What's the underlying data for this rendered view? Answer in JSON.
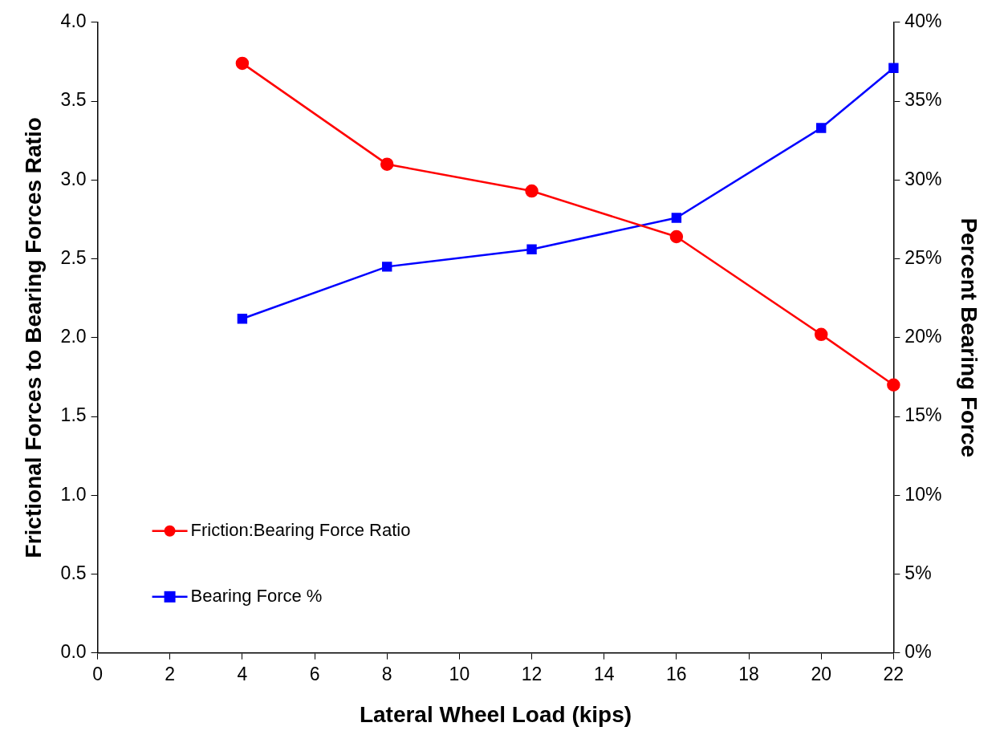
{
  "chart_data": {
    "type": "line",
    "xlabel": "Lateral Wheel Load (kips)",
    "ylabel": "Frictional Forces to Bearing Forces Ratio",
    "y2label": "Percent Bearing Force",
    "x": [
      4,
      8,
      12,
      16,
      20,
      22
    ],
    "series": [
      {
        "name": "Friction:Bearing Force Ratio",
        "color": "#ff0000",
        "marker": "circle",
        "values": [
          3.74,
          3.1,
          2.93,
          2.64,
          2.02,
          1.7
        ]
      },
      {
        "name": "Bearing Force %",
        "color": "#0000ff",
        "marker": "square",
        "axis": "y2",
        "values": [
          21.2,
          24.5,
          25.6,
          27.6,
          33.3,
          37.1
        ]
      }
    ],
    "xlim": [
      0,
      22
    ],
    "xticks": [
      0,
      2,
      4,
      6,
      8,
      10,
      12,
      14,
      16,
      18,
      20,
      22
    ],
    "ylim": [
      0,
      4
    ],
    "yticks": [
      {
        "value": 0,
        "label": "0.0"
      },
      {
        "value": 0.5,
        "label": "0.5"
      },
      {
        "value": 1,
        "label": "1.0"
      },
      {
        "value": 1.5,
        "label": "1.5"
      },
      {
        "value": 2,
        "label": "2.0"
      },
      {
        "value": 2.5,
        "label": "2.5"
      },
      {
        "value": 3,
        "label": "3.0"
      },
      {
        "value": 3.5,
        "label": "3.5"
      },
      {
        "value": 4,
        "label": "4.0"
      }
    ],
    "y2lim": [
      0,
      40
    ],
    "y2ticks": [
      {
        "value": 0,
        "label": "0%"
      },
      {
        "value": 5,
        "label": "5%"
      },
      {
        "value": 10,
        "label": "10%"
      },
      {
        "value": 15,
        "label": "15%"
      },
      {
        "value": 20,
        "label": "20%"
      },
      {
        "value": 25,
        "label": "25%"
      },
      {
        "value": 30,
        "label": "30%"
      },
      {
        "value": 35,
        "label": "35%"
      },
      {
        "value": 40,
        "label": "40%"
      }
    ],
    "grid": false,
    "legend": "bottom left",
    "line_style": "solid"
  }
}
